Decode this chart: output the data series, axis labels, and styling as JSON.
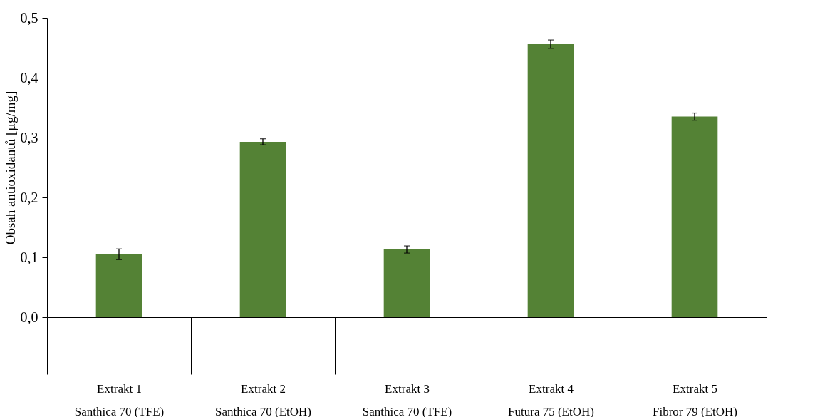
{
  "chart_data": {
    "type": "bar",
    "ylabel": "Obsah antioxidantů [µg/mg]",
    "categories": [
      "Extrakt 1\nSanthica 70 (TFE)",
      "Extrakt 2\nSanthica 70 (EtOH)",
      "Extrakt 3\nSanthica 70 (TFE)",
      "Extrakt 4\nFutura 75 (EtOH)",
      "Extrakt 5\nFibror 79 (EtOH)"
    ],
    "values": [
      0.105,
      0.293,
      0.113,
      0.456,
      0.335
    ],
    "errors": [
      0.009,
      0.005,
      0.006,
      0.007,
      0.006
    ],
    "color": "#548235",
    "ylim": [
      0,
      0.5
    ],
    "yticks": [
      {
        "value": 0,
        "label": "0,0"
      },
      {
        "value": 0.1,
        "label": "0,1"
      },
      {
        "value": 0.2,
        "label": "0,2"
      },
      {
        "value": 0.3,
        "label": "0,3"
      },
      {
        "value": 0.4,
        "label": "0,4"
      },
      {
        "value": 0.5,
        "label": "0,5"
      }
    ],
    "grid": false
  }
}
